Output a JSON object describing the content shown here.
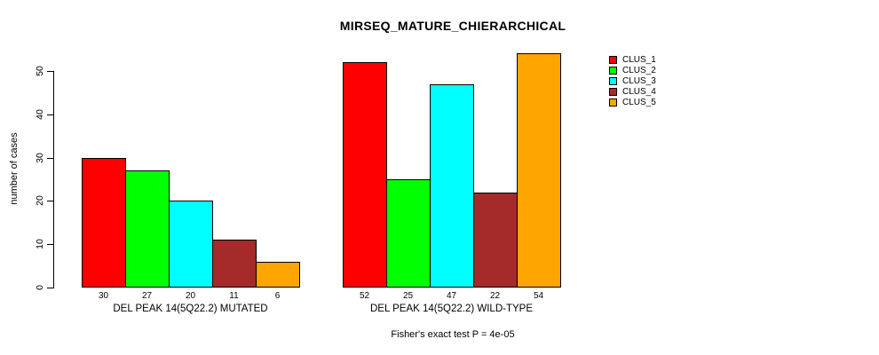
{
  "chart_data": {
    "type": "bar",
    "title": "MIRSEQ_MATURE_CHIERARCHICAL",
    "ylabel": "number of cases",
    "xlabel": "",
    "ylim": [
      0,
      50
    ],
    "yticks": [
      0,
      10,
      20,
      30,
      40,
      50
    ],
    "grid": false,
    "legend_position": "right-outside",
    "series": [
      {
        "name": "CLUS_1",
        "color": "#FF0000"
      },
      {
        "name": "CLUS_2",
        "color": "#00FF00"
      },
      {
        "name": "CLUS_3",
        "color": "#00FFFF"
      },
      {
        "name": "CLUS_4",
        "color": "#A52A2A"
      },
      {
        "name": "CLUS_5",
        "color": "#FFA500"
      }
    ],
    "groups": [
      {
        "label": "DEL PEAK 14(5Q22.2) MUTATED",
        "values": [
          30,
          27,
          20,
          11,
          6
        ]
      },
      {
        "label": "DEL PEAK 14(5Q22.2) WILD-TYPE",
        "values": [
          52,
          25,
          47,
          22,
          54
        ]
      }
    ],
    "bar_value_labels": [
      [
        30,
        27,
        20,
        11,
        6
      ],
      [
        52,
        25,
        47,
        22,
        54
      ]
    ],
    "footnote": "Fisher's exact test P = 4e-05"
  }
}
